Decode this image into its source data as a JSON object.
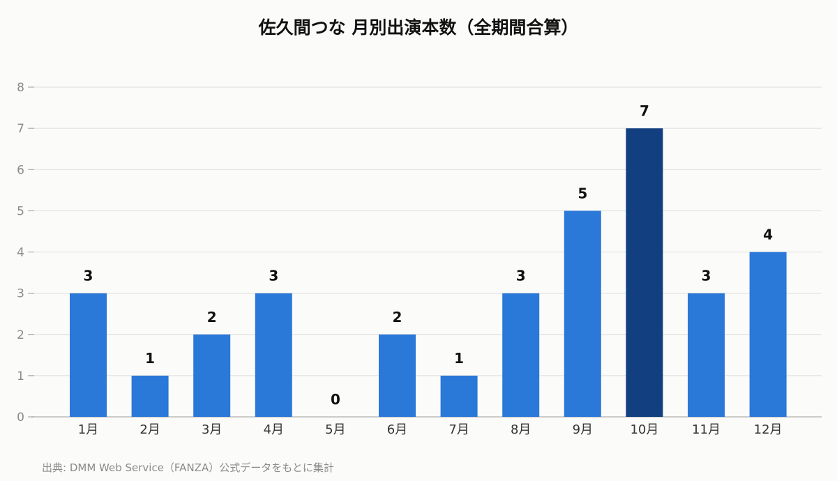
{
  "chart_data": {
    "type": "bar",
    "title": "佐久間つな 月別出演本数（全期間合算）",
    "categories": [
      "1月",
      "2月",
      "3月",
      "4月",
      "5月",
      "6月",
      "7月",
      "8月",
      "9月",
      "10月",
      "11月",
      "12月"
    ],
    "values": [
      3,
      1,
      2,
      3,
      0,
      2,
      1,
      3,
      5,
      7,
      3,
      4
    ],
    "highlight_index": 9,
    "ylim": [
      0,
      8
    ],
    "yticks": [
      "0",
      "1",
      "2",
      "3",
      "4",
      "5",
      "6",
      "7",
      "8"
    ],
    "xlabel": "",
    "ylabel": "",
    "grid": true,
    "colors": {
      "bar": "#2a78d8",
      "highlight": "#123f80",
      "grid": "#dddddd",
      "tick": "#8a8a8a",
      "label": "#111111"
    }
  },
  "source": "出典: DMM Web Service（FANZA）公式データをもとに集計"
}
